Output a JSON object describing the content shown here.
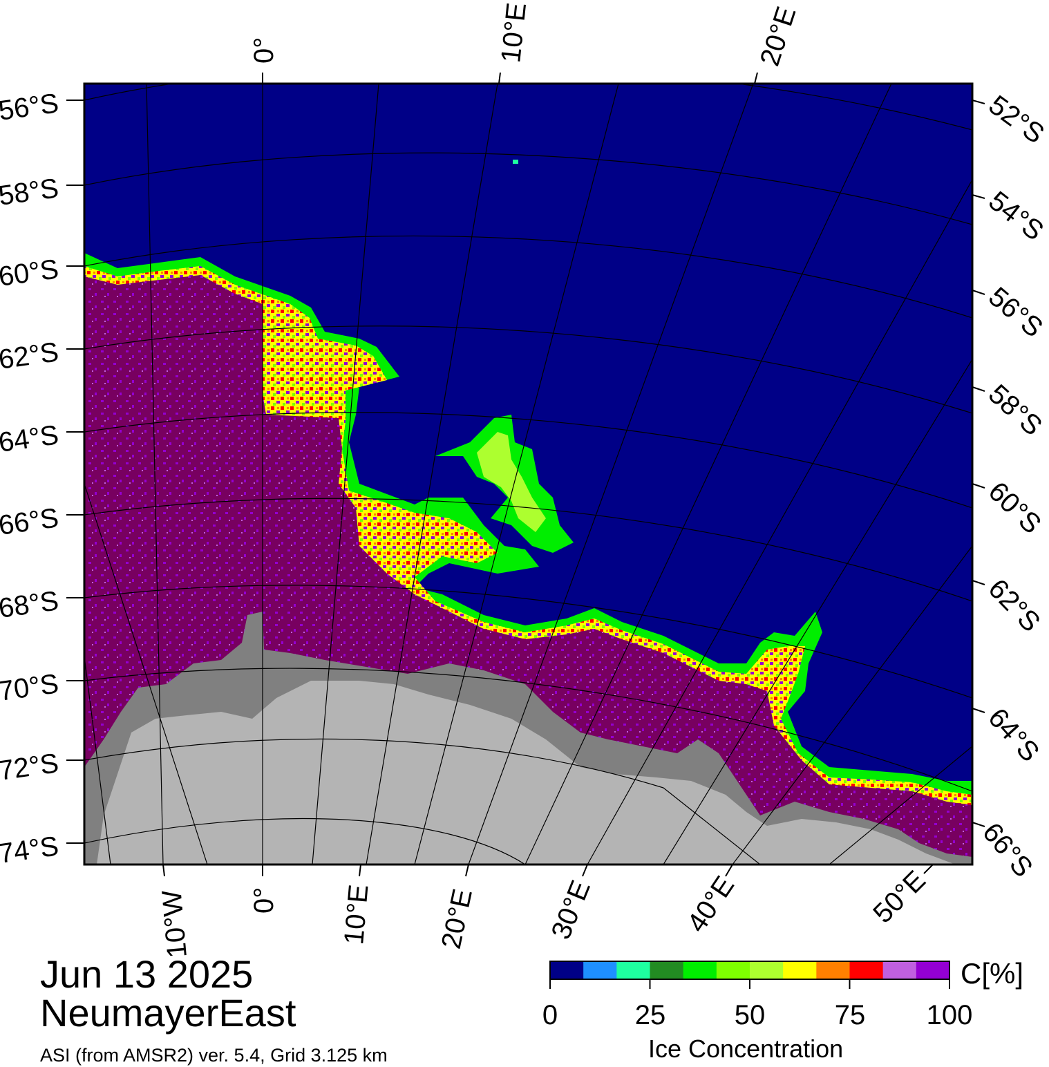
{
  "caption": {
    "date": "Jun 13 2025",
    "region": "NeumayerEast",
    "product": "ASI (from AMSR2) ver. 5.4,  Grid 3.125 km"
  },
  "colorbar": {
    "unit_label": "C[%]",
    "title": "Ice Concentration",
    "ticks": [
      "0",
      "25",
      "50",
      "75",
      "100"
    ],
    "colors": [
      "#000087",
      "#1e90ff",
      "#1effa0",
      "#228b22",
      "#00ee00",
      "#7fff00",
      "#adff2f",
      "#ffff00",
      "#ff8000",
      "#ff0000",
      "#c060e0",
      "#9400d3"
    ]
  },
  "map": {
    "ocean_color": "#000087",
    "land_color": "#b4b4b4",
    "ice_shelf_color": "#808080",
    "pack_ice_color": "#780060",
    "lat_labels_left": [
      "56°S",
      "58°S",
      "60°S",
      "62°S",
      "64°S",
      "66°S",
      "68°S",
      "70°S",
      "72°S",
      "74°S"
    ],
    "lat_labels_right": [
      "52°S",
      "54°S",
      "56°S",
      "58°S",
      "60°S",
      "62°S",
      "64°S",
      "66°S"
    ],
    "lon_labels_top": [
      "0°",
      "10°E",
      "20°E"
    ],
    "lon_labels_bottom": [
      "10°W",
      "0°",
      "10°E",
      "20°E",
      "30°E",
      "40°E",
      "50°E"
    ]
  }
}
